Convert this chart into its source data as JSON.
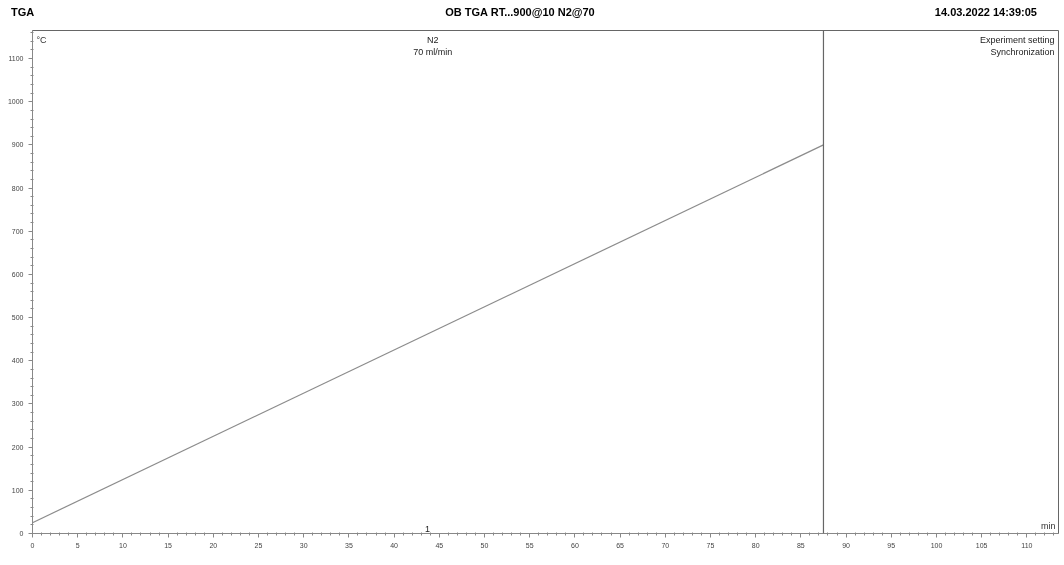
{
  "chart_data": {
    "type": "line",
    "title": "OB TGA RT...900@10 N2@70",
    "xlabel": "min",
    "ylabel": "°C",
    "x": [
      0,
      87.5
    ],
    "series": [
      {
        "color": "#8c8c8c",
        "values": [
          25,
          900
        ]
      }
    ],
    "xlim": [
      0,
      113.5
    ],
    "ylim": [
      0,
      1165
    ],
    "xticks": [
      0,
      5,
      10,
      15,
      20,
      25,
      30,
      35,
      40,
      45,
      50,
      55,
      60,
      65,
      70,
      75,
      80,
      85,
      90,
      95,
      100,
      105,
      110
    ],
    "yticks": [
      0,
      100,
      200,
      300,
      400,
      500,
      600,
      700,
      800,
      900,
      1000,
      1100
    ],
    "ref_lines": [
      {
        "axis": "x",
        "value": 87.5,
        "color": "#666666"
      }
    ],
    "annotations": [
      "TGA",
      "14.03.2022 14:39:05",
      "N2\n70 ml/min",
      "Experiment setting\nSynchronization",
      "1"
    ],
    "grid": false,
    "marker": "none",
    "line_style": "solid"
  }
}
